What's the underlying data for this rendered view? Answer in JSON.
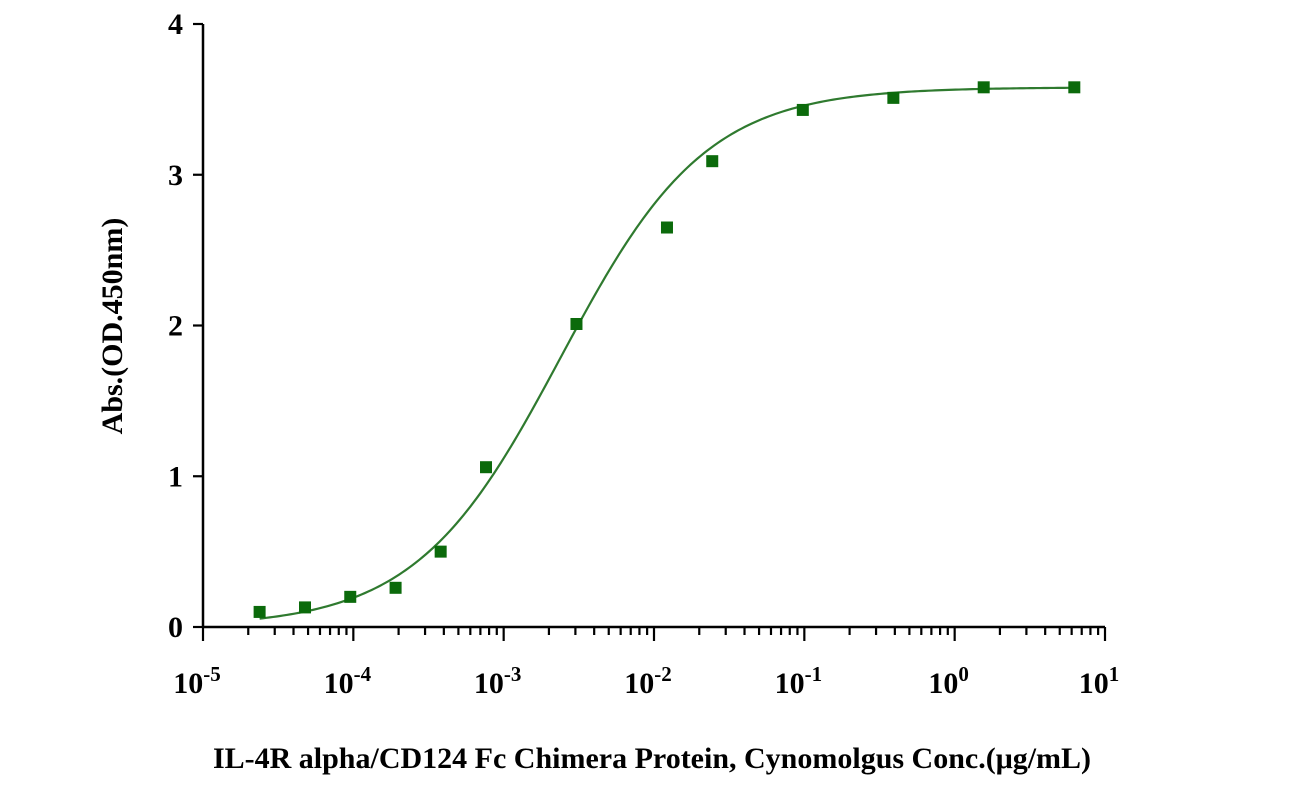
{
  "chart_data": {
    "type": "scatter",
    "title": "",
    "xlabel": "IL-4R alpha/CD124 Fc Chimera Protein, Cynomolgus Conc.(μg/mL)",
    "ylabel": "Abs.(OD.450nm)",
    "xscale": "log",
    "xlim": [
      1e-05,
      10
    ],
    "ylim": [
      0,
      4
    ],
    "x_ticks": [
      {
        "base": "10",
        "exp": "-5"
      },
      {
        "base": "10",
        "exp": "-4"
      },
      {
        "base": "10",
        "exp": "-3"
      },
      {
        "base": "10",
        "exp": "-2"
      },
      {
        "base": "10",
        "exp": "-1"
      },
      {
        "base": "10",
        "exp": "0"
      },
      {
        "base": "10",
        "exp": "1"
      }
    ],
    "y_ticks": [
      "0",
      "1",
      "2",
      "3",
      "4"
    ],
    "grid": false,
    "series": [
      {
        "marker": "square",
        "color": "#0b6a0b",
        "points": [
          {
            "x": 2.38e-05,
            "y": 0.1
          },
          {
            "x": 4.77e-05,
            "y": 0.13
          },
          {
            "x": 9.54e-05,
            "y": 0.2
          },
          {
            "x": 0.000191,
            "y": 0.26
          },
          {
            "x": 0.000381,
            "y": 0.5
          },
          {
            "x": 0.000763,
            "y": 1.06
          },
          {
            "x": 0.00305,
            "y": 2.01
          },
          {
            "x": 0.0122,
            "y": 2.65
          },
          {
            "x": 0.0244,
            "y": 3.09
          },
          {
            "x": 0.0977,
            "y": 3.43
          },
          {
            "x": 0.391,
            "y": 3.51
          },
          {
            "x": 1.56,
            "y": 3.58
          },
          {
            "x": 6.25,
            "y": 3.58
          }
        ]
      }
    ],
    "fit_curve": {
      "model": "4PL",
      "color": "#2f7a2f",
      "bottom": 0.0,
      "top": 3.58,
      "ec50": 0.0024,
      "hill": 0.9,
      "x_range": [
        2.38e-05,
        6.25
      ]
    }
  }
}
